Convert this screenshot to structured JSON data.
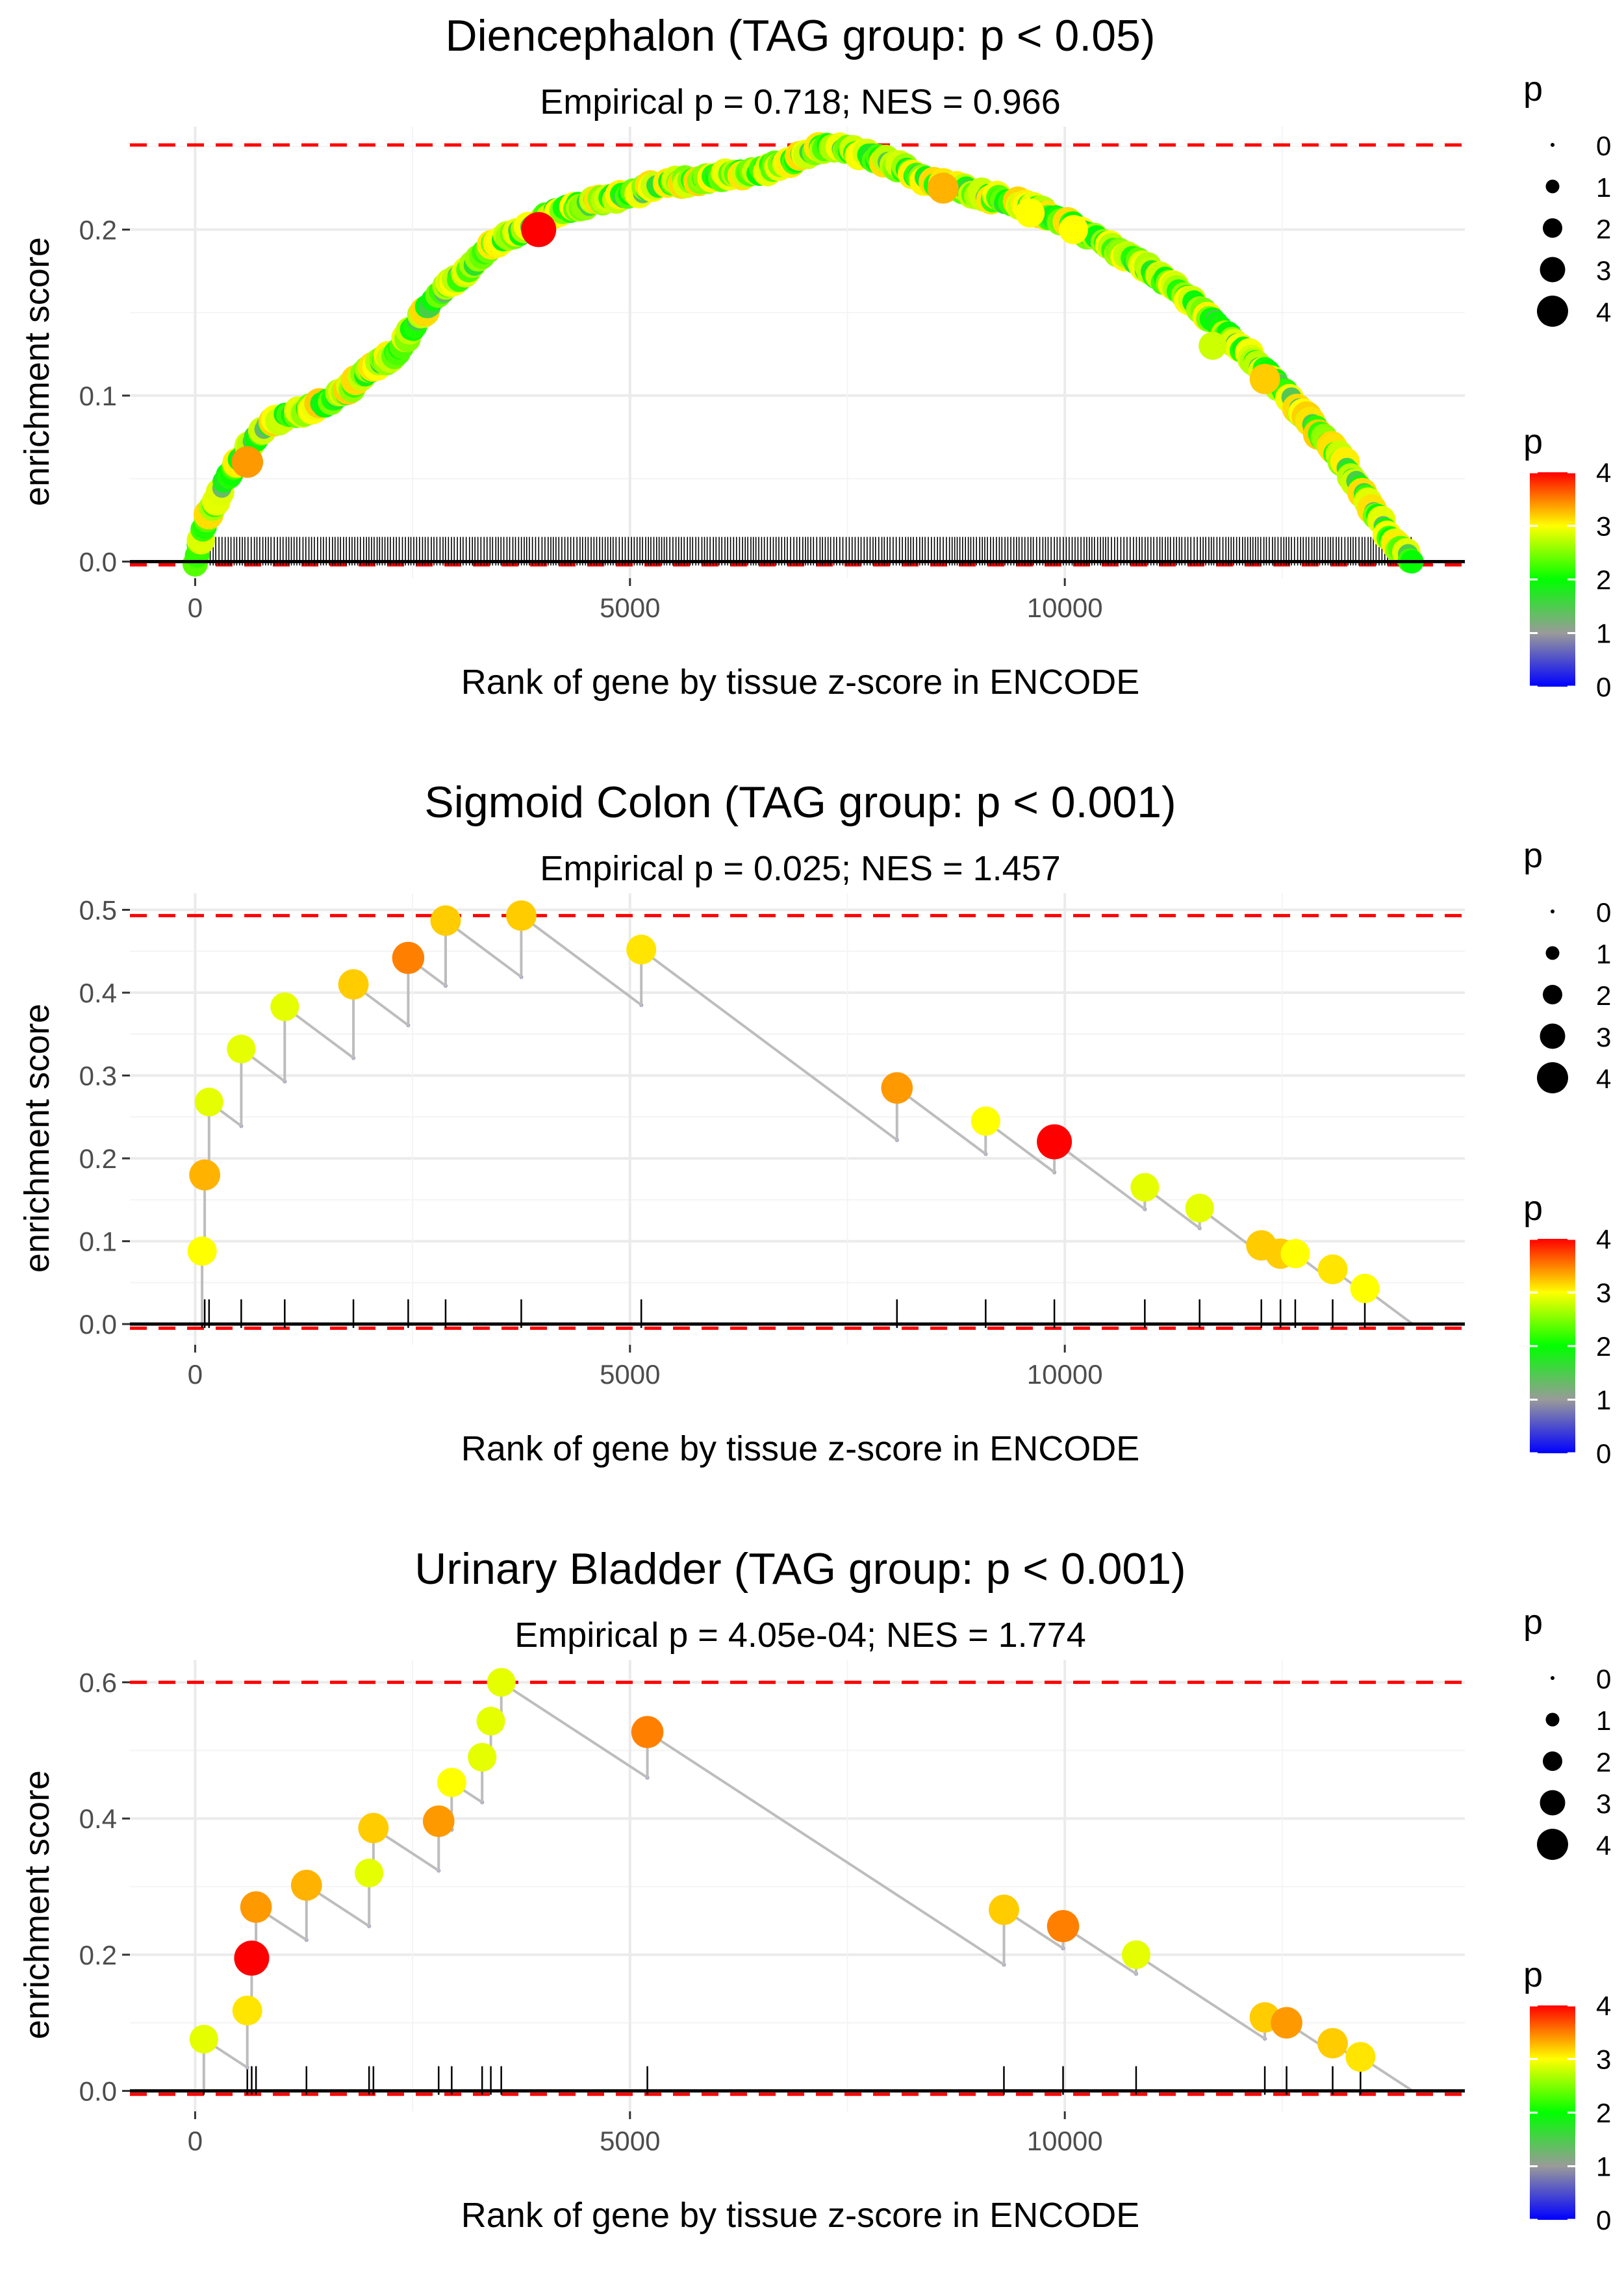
{
  "legend": {
    "size_title": "p",
    "size_levels": [
      "0",
      "1",
      "2",
      "3",
      "4"
    ],
    "color_title": "p",
    "color_ticks": [
      "0",
      "1",
      "2",
      "3",
      "4"
    ]
  },
  "chart_data": [
    {
      "type": "scatter",
      "title": "Diencephalon (TAG group: p < 0.05)",
      "subtitle": "Empirical p = 0.718; NES = 0.966",
      "xlabel": "Rank of gene by tissue z-score in ENCODE",
      "ylabel": "enrichment score",
      "xlim": [
        -750,
        14600
      ],
      "ylim": [
        -0.01,
        0.262
      ],
      "x_ticks": [
        0,
        5000,
        10000
      ],
      "x_tick_labels": [
        "0",
        "5000",
        "10000"
      ],
      "y_ticks": [
        0,
        0.1,
        0.2
      ],
      "y_tick_labels": [
        "0.0",
        "0.1",
        "0.2"
      ],
      "max_es": 0.251,
      "min_es": -0.002,
      "curve_description": "dense running-sum curve of several hundred genes",
      "curve": [
        [
          0,
          0
        ],
        [
          100,
          0.02
        ],
        [
          300,
          0.045
        ],
        [
          500,
          0.06
        ],
        [
          700,
          0.075
        ],
        [
          900,
          0.085
        ],
        [
          1200,
          0.09
        ],
        [
          1500,
          0.095
        ],
        [
          1800,
          0.105
        ],
        [
          2000,
          0.115
        ],
        [
          2300,
          0.125
        ],
        [
          2500,
          0.14
        ],
        [
          2700,
          0.155
        ],
        [
          3000,
          0.17
        ],
        [
          3200,
          0.18
        ],
        [
          3500,
          0.195
        ],
        [
          3800,
          0.2
        ],
        [
          4100,
          0.21
        ],
        [
          4500,
          0.215
        ],
        [
          5000,
          0.222
        ],
        [
          5500,
          0.228
        ],
        [
          6000,
          0.232
        ],
        [
          6500,
          0.235
        ],
        [
          7000,
          0.245
        ],
        [
          7300,
          0.25
        ],
        [
          7700,
          0.245
        ],
        [
          8000,
          0.24
        ],
        [
          8500,
          0.228
        ],
        [
          9000,
          0.222
        ],
        [
          9500,
          0.215
        ],
        [
          10000,
          0.205
        ],
        [
          10500,
          0.19
        ],
        [
          11000,
          0.175
        ],
        [
          11500,
          0.155
        ],
        [
          12000,
          0.13
        ],
        [
          12400,
          0.11
        ],
        [
          12800,
          0.085
        ],
        [
          13200,
          0.06
        ],
        [
          13500,
          0.035
        ],
        [
          13800,
          0.01
        ],
        [
          14000,
          0
        ]
      ],
      "highlight_points": [
        {
          "x": 600,
          "y": 0.06,
          "p": 3.4
        },
        {
          "x": 3950,
          "y": 0.2,
          "p": 4.0
        },
        {
          "x": 8600,
          "y": 0.225,
          "p": 3.3
        },
        {
          "x": 12300,
          "y": 0.11,
          "p": 3.2
        },
        {
          "x": 10100,
          "y": 0.2,
          "p": 3.0
        },
        {
          "x": 9600,
          "y": 0.21,
          "p": 3.0
        },
        {
          "x": 11700,
          "y": 0.13,
          "p": 2.8
        }
      ],
      "rug_description": "dense rug of gene ranks spanning 0 to 14000"
    },
    {
      "type": "scatter",
      "title": "Sigmoid Colon (TAG group: p < 0.001)",
      "subtitle": "Empirical p = 0.025; NES = 1.457",
      "xlabel": "Rank of gene by tissue z-score in ENCODE",
      "ylabel": "enrichment score",
      "xlim": [
        -750,
        14600
      ],
      "ylim": [
        -0.025,
        0.52
      ],
      "x_ticks": [
        0,
        5000,
        10000
      ],
      "x_tick_labels": [
        "0",
        "5000",
        "10000"
      ],
      "y_ticks": [
        0,
        0.1,
        0.2,
        0.3,
        0.4,
        0.5
      ],
      "y_tick_labels": [
        "0.0",
        "0.1",
        "0.2",
        "0.3",
        "0.4",
        "0.5"
      ],
      "max_es": 0.493,
      "min_es": -0.005,
      "points": [
        {
          "x": 80,
          "y": 0.088,
          "p": 3.0
        },
        {
          "x": 110,
          "y": 0.18,
          "p": 3.3
        },
        {
          "x": 160,
          "y": 0.268,
          "p": 2.9
        },
        {
          "x": 530,
          "y": 0.332,
          "p": 2.9
        },
        {
          "x": 1030,
          "y": 0.383,
          "p": 2.9
        },
        {
          "x": 1820,
          "y": 0.41,
          "p": 3.2
        },
        {
          "x": 2450,
          "y": 0.442,
          "p": 3.5
        },
        {
          "x": 2880,
          "y": 0.487,
          "p": 3.2
        },
        {
          "x": 3750,
          "y": 0.493,
          "p": 3.2
        },
        {
          "x": 5130,
          "y": 0.452,
          "p": 3.1
        },
        {
          "x": 8070,
          "y": 0.285,
          "p": 3.4
        },
        {
          "x": 9090,
          "y": 0.245,
          "p": 3.0
        },
        {
          "x": 9880,
          "y": 0.22,
          "p": 4.0
        },
        {
          "x": 10920,
          "y": 0.165,
          "p": 2.9
        },
        {
          "x": 11550,
          "y": 0.14,
          "p": 2.9
        },
        {
          "x": 12260,
          "y": 0.095,
          "p": 3.2
        },
        {
          "x": 12480,
          "y": 0.085,
          "p": 3.2
        },
        {
          "x": 12650,
          "y": 0.085,
          "p": 3.0
        },
        {
          "x": 13080,
          "y": 0.066,
          "p": 3.1
        },
        {
          "x": 13450,
          "y": 0.043,
          "p": 3.0
        }
      ],
      "end": {
        "x": 14000,
        "y": 0
      }
    },
    {
      "type": "scatter",
      "title": "Urinary Bladder (TAG group: p < 0.001)",
      "subtitle": "Empirical p = 4.05e-04; NES = 1.774",
      "xlabel": "Rank of gene by tissue z-score in ENCODE",
      "ylabel": "enrichment score",
      "xlim": [
        -750,
        14600
      ],
      "ylim": [
        -0.03,
        0.633
      ],
      "x_ticks": [
        0,
        5000,
        10000
      ],
      "x_tick_labels": [
        "0",
        "5000",
        "10000"
      ],
      "y_ticks": [
        0,
        0.2,
        0.4,
        0.6
      ],
      "y_tick_labels": [
        "0.0",
        "0.2",
        "0.4",
        "0.6"
      ],
      "max_es": 0.6,
      "min_es": -0.005,
      "points": [
        {
          "x": 100,
          "y": 0.076,
          "p": 2.9
        },
        {
          "x": 600,
          "y": 0.118,
          "p": 3.1
        },
        {
          "x": 650,
          "y": 0.195,
          "p": 4.0
        },
        {
          "x": 700,
          "y": 0.27,
          "p": 3.4
        },
        {
          "x": 1280,
          "y": 0.302,
          "p": 3.3
        },
        {
          "x": 2000,
          "y": 0.32,
          "p": 2.9
        },
        {
          "x": 2050,
          "y": 0.386,
          "p": 3.2
        },
        {
          "x": 2800,
          "y": 0.396,
          "p": 3.4
        },
        {
          "x": 2950,
          "y": 0.453,
          "p": 3.0
        },
        {
          "x": 3300,
          "y": 0.49,
          "p": 2.9
        },
        {
          "x": 3400,
          "y": 0.543,
          "p": 2.9
        },
        {
          "x": 3520,
          "y": 0.6,
          "p": 2.9
        },
        {
          "x": 5200,
          "y": 0.527,
          "p": 3.5
        },
        {
          "x": 9300,
          "y": 0.266,
          "p": 3.2
        },
        {
          "x": 9980,
          "y": 0.242,
          "p": 3.5
        },
        {
          "x": 10820,
          "y": 0.2,
          "p": 2.9
        },
        {
          "x": 12300,
          "y": 0.108,
          "p": 3.2
        },
        {
          "x": 12550,
          "y": 0.1,
          "p": 3.4
        },
        {
          "x": 13080,
          "y": 0.07,
          "p": 3.2
        },
        {
          "x": 13400,
          "y": 0.05,
          "p": 3.1
        }
      ],
      "end": {
        "x": 14000,
        "y": 0
      }
    }
  ]
}
